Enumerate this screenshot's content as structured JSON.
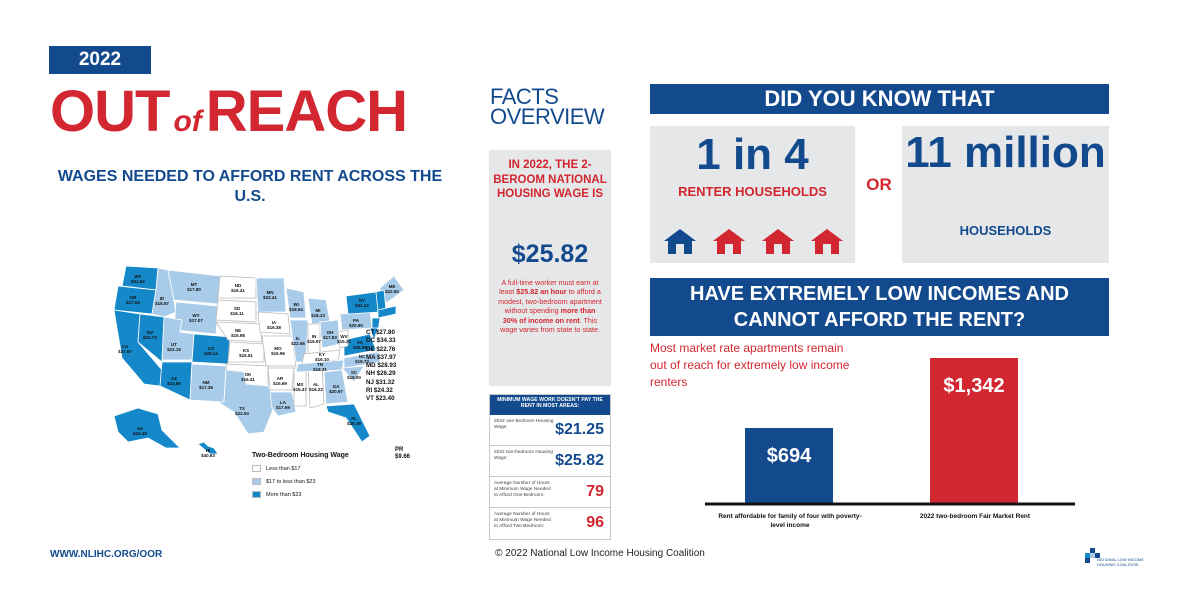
{
  "header": {
    "year": "2022",
    "title_out": "OUT",
    "title_of": "of",
    "title_reach": "REACH",
    "subtitle": "WAGES NEEDED TO AFFORD RENT ACROSS THE U.S."
  },
  "map": {
    "states": [
      {
        "abbr": "WA",
        "wage": "$31.62"
      },
      {
        "abbr": "OR",
        "wage": "$27.63"
      },
      {
        "abbr": "CA",
        "wage": "$37.67"
      },
      {
        "abbr": "ID",
        "wage": "$18.67"
      },
      {
        "abbr": "NV",
        "wage": "$23.73"
      },
      {
        "abbr": "MT",
        "wage": "$17.80"
      },
      {
        "abbr": "WY",
        "wage": "$17.07"
      },
      {
        "abbr": "UT",
        "wage": "$22.15"
      },
      {
        "abbr": "AZ",
        "wage": "$23.86"
      },
      {
        "abbr": "CO",
        "wage": "$28.14"
      },
      {
        "abbr": "NM",
        "wage": "$17.36"
      },
      {
        "abbr": "ND",
        "wage": "$16.41"
      },
      {
        "abbr": "SD",
        "wage": "$16.11"
      },
      {
        "abbr": "NE",
        "wage": "$16.98"
      },
      {
        "abbr": "KS",
        "wage": "$16.51"
      },
      {
        "abbr": "OK",
        "wage": "$16.41"
      },
      {
        "abbr": "TX",
        "wage": "$22.04"
      },
      {
        "abbr": "MN",
        "wage": "$22.41"
      },
      {
        "abbr": "IA",
        "wage": "$16.38"
      },
      {
        "abbr": "MO",
        "wage": "$16.96"
      },
      {
        "abbr": "AR",
        "wage": "$15.69"
      },
      {
        "abbr": "LA",
        "wage": "$17.69"
      },
      {
        "abbr": "WI",
        "wage": "$18.54"
      },
      {
        "abbr": "IL",
        "wage": "$22.56"
      },
      {
        "abbr": "MS",
        "wage": "$15.47"
      },
      {
        "abbr": "MI",
        "wage": "$18.13"
      },
      {
        "abbr": "IN",
        "wage": "$16.97"
      },
      {
        "abbr": "KY",
        "wage": "$16.10"
      },
      {
        "abbr": "TN",
        "wage": "$18.31"
      },
      {
        "abbr": "AL",
        "wage": "$16.22"
      },
      {
        "abbr": "OH",
        "wage": "$17.83"
      },
      {
        "abbr": "GA",
        "wage": "$20.97"
      },
      {
        "abbr": "FL",
        "wage": "$26.39"
      },
      {
        "abbr": "SC",
        "wage": "$19.00"
      },
      {
        "abbr": "NC",
        "wage": "$19.73"
      },
      {
        "abbr": "VA",
        "wage": "$26.65"
      },
      {
        "abbr": "WV",
        "wage": "$15.20"
      },
      {
        "abbr": "PA",
        "wage": "$20.90"
      },
      {
        "abbr": "NY",
        "wage": "$31.12"
      },
      {
        "abbr": "ME",
        "wage": "$22.60"
      },
      {
        "abbr": "AK",
        "wage": "$24.35"
      },
      {
        "abbr": "HI",
        "wage": "$40.63"
      }
    ],
    "small_states": [
      "CT $27.80",
      "DC $34.33",
      "DE $22.76",
      "MA $37.97",
      "MD $28.93",
      "NH $26.29",
      "NJ $31.32",
      "RI $24.32",
      "VT $23.40"
    ],
    "pr": {
      "abbr": "PR",
      "wage": "$9.66"
    },
    "legend": {
      "title": "Two-Bedroom Housing Wage",
      "items": [
        {
          "label": "Less than $17",
          "color": "#ffffff"
        },
        {
          "label": "$17 to less than $23",
          "color": "#a7cbe8"
        },
        {
          "label": "More than $23",
          "color": "#1588c9"
        }
      ]
    }
  },
  "facts": {
    "heading_line1": "FACTS",
    "heading_line2": "OVERVIEW",
    "headline": "IN 2022, THE 2-BEROOM NATIONAL HOUSING WAGE IS",
    "wage": "$25.82",
    "body_1": "A full-time worker must earn at least ",
    "body_2": "$25.82 an hour",
    "body_3": " to afford a modest, two-bedroom apartment without spending ",
    "body_4": "more than 30% of income on rent",
    "body_5": ". This wage varies from state to state."
  },
  "min_wage": {
    "heading": "MINIMUM WAGE WORK DOESN'T PAY THE RENT IN MOST AREAS:",
    "rows": [
      {
        "label": "2022 one-bedroom Housing Wage:",
        "value": "$21.25",
        "color": "#134a8e"
      },
      {
        "label": "2022 two-bedroom Housing Wage:",
        "value": "$25.82",
        "color": "#134a8e"
      },
      {
        "label": "Average Number of Hours at Minimum Wage Needed to Afford One-Bedroom:",
        "value": "79",
        "color": "#d22630"
      },
      {
        "label": "Average Number of Hours at Minimum Wage Needed to Afford Two-Bedroom:",
        "value": "96",
        "color": "#d22630"
      }
    ]
  },
  "did_you_know": {
    "heading": "DID YOU KNOW THAT",
    "stat1": "1 in 4",
    "stat1_label": "RENTER HOUSEHOLDS",
    "or": "OR",
    "stat2": "11 million",
    "stat2_label": "HOUSEHOLDS",
    "house_icons": [
      "house-icon-blue",
      "house-icon-red",
      "house-icon-red",
      "house-icon-red"
    ],
    "question": "HAVE EXTREMELY LOW INCOMES AND CANNOT AFFORD THE RENT?",
    "market_1": "Most market rate apartments remain ",
    "market_2": "out of reach",
    "market_3": " for extremely low income renters"
  },
  "chart_data": {
    "type": "bar",
    "categories": [
      "Rent affordable for family of four with poverty-level income",
      "2022 two-bedroom Fair Market Rent"
    ],
    "values": [
      694,
      1342
    ],
    "value_labels": [
      "$694",
      "$1,342"
    ],
    "colors": [
      "#134a8e",
      "#d22630"
    ],
    "title": "",
    "xlabel": "",
    "ylabel": ""
  },
  "footer": {
    "url": "WWW.NLIHC.ORG/OOR",
    "copyright": "© 2022 National Low Income Housing Coalition",
    "logo_text": "NATIONAL LOW INCOME HOUSING COALITION"
  }
}
